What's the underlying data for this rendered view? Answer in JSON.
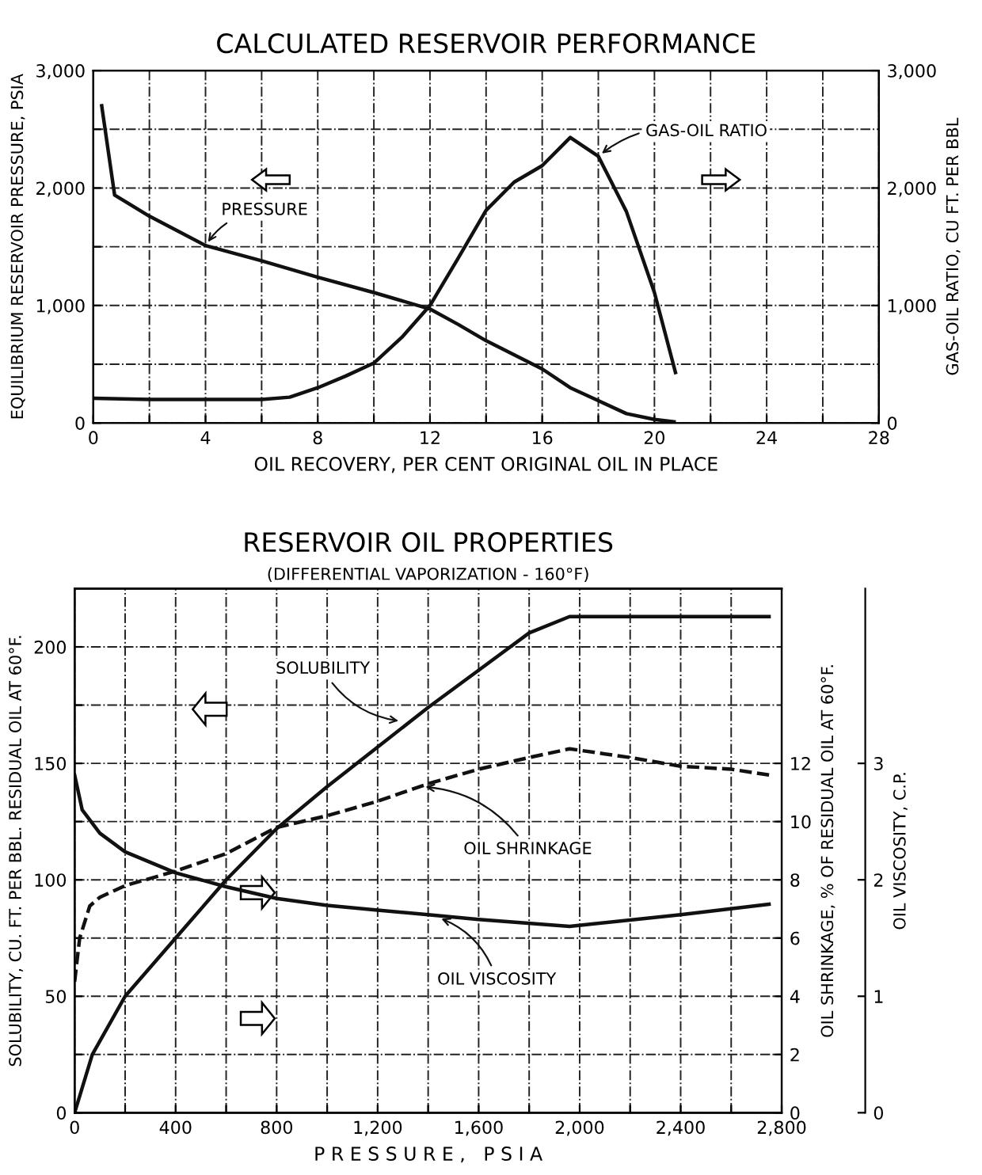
{
  "chart_data": [
    {
      "type": "line",
      "title": "CALCULATED RESERVOIR PERFORMANCE",
      "xlabel": "OIL RECOVERY, PER CENT ORIGINAL OIL IN PLACE",
      "ylabel": "EQUILIBRIUM RESERVOIR PRESSURE, PSIA",
      "y2label": "GAS-OIL RATIO, CU FT. PER BBL",
      "xlim": [
        0,
        28
      ],
      "xticks": [
        0,
        {
          "value": 2,
          "label": null
        },
        4,
        {
          "value": 6,
          "label": null
        },
        8,
        {
          "value": 10,
          "label": null
        },
        12,
        {
          "value": 14,
          "label": null
        },
        16,
        {
          "value": 18,
          "label": null
        },
        20,
        {
          "value": 22,
          "label": null
        },
        24,
        {
          "value": 26,
          "label": null
        },
        28
      ],
      "ylim": [
        0,
        3000
      ],
      "yticks": [
        {
          "value": 0,
          "label": "0"
        },
        {
          "value": 500,
          "label": null
        },
        {
          "value": 1000,
          "label": "1,000"
        },
        {
          "value": 1500,
          "label": null
        },
        {
          "value": 2000,
          "label": "2,000"
        },
        {
          "value": 2500,
          "label": null
        },
        {
          "value": 3000,
          "label": "3,000"
        }
      ],
      "y2lim": [
        0,
        3000
      ],
      "y2ticks": [
        {
          "value": 0,
          "label": "0"
        },
        {
          "value": 1000,
          "label": "1,000"
        },
        {
          "value": 2000,
          "label": "2,000"
        },
        {
          "value": 3000,
          "label": "3,000"
        }
      ],
      "grid": true,
      "line_style": "solid",
      "marker": "none",
      "series": [
        {
          "color": "#111111",
          "x": [
            0.3,
            0.76,
            2,
            4,
            6,
            8,
            10,
            12,
            13,
            14,
            16,
            17,
            18,
            19,
            20,
            20.7
          ],
          "values": [
            2700,
            1940,
            1760,
            1510,
            1380,
            1240,
            1110,
            970,
            840,
            700,
            460,
            300,
            190,
            80,
            30,
            10
          ]
        },
        {
          "color": "#111111",
          "axis": "y2",
          "x": [
            0,
            2,
            4,
            6,
            7,
            8,
            9,
            10,
            11,
            12,
            13,
            14,
            15,
            16,
            17,
            18,
            19,
            20,
            20.75
          ],
          "values": [
            210,
            200,
            200,
            200,
            220,
            300,
            400,
            510,
            730,
            1000,
            1400,
            1810,
            2050,
            2190,
            2430,
            2270,
            1800,
            1110,
            430
          ]
        }
      ],
      "annotations": [
        {
          "text": "PRESSURE",
          "x": 4,
          "y": 1510
        },
        {
          "text": "GAS-OIL RATIO",
          "x": 18,
          "y": 2270
        }
      ]
    },
    {
      "type": "line",
      "title": "RESERVOIR OIL PROPERTIES",
      "subtitle": "(DIFFERENTIAL VAPORIZATION - 160°F)",
      "xlabel": "P R E S S U R E ,   P S I A",
      "ylabel": "SOLUBILITY, CU. FT. PER BBL. RESIDUAL OIL AT 60°F.",
      "y2label": "OIL SHRINKAGE, % OF RESIDUAL OIL AT 60°F.",
      "y3label": "OIL VISCOSITY, C.P.",
      "xlim": [
        0,
        2800
      ],
      "xticks": [
        0,
        {
          "value": 200,
          "label": null
        },
        400,
        {
          "value": 600,
          "label": null
        },
        {
          "value": 800,
          "label": "800"
        },
        {
          "value": 1000,
          "label": null
        },
        {
          "value": 1200,
          "label": "1,200"
        },
        {
          "value": 1400,
          "label": null
        },
        {
          "value": 1600,
          "label": "1,600"
        },
        {
          "value": 1800,
          "label": null
        },
        {
          "value": 2000,
          "label": "2,000"
        },
        {
          "value": 2200,
          "label": null
        },
        {
          "value": 2400,
          "label": "2,400"
        },
        {
          "value": 2600,
          "label": null
        },
        {
          "value": 2800,
          "label": "2,800"
        }
      ],
      "ylim": [
        0,
        225
      ],
      "yticks": [
        0,
        {
          "value": 25,
          "label": null
        },
        50,
        {
          "value": 75,
          "label": null
        },
        100,
        {
          "value": 125,
          "label": null
        },
        150,
        {
          "value": 175,
          "label": null
        },
        200
      ],
      "y2lim": [
        0,
        18
      ],
      "y2ticks": [
        0,
        2,
        4,
        6,
        8,
        10,
        12
      ],
      "y3lim": [
        0,
        4.5
      ],
      "y3ticks": [
        0,
        1,
        2,
        3
      ],
      "grid": true,
      "marker": "none",
      "series": [
        {
          "color": "#111111",
          "line_style": "solid",
          "x": [
            0,
            70,
            200,
            400,
            600,
            800,
            1000,
            1200,
            1400,
            1600,
            1800,
            1960,
            2750
          ],
          "values": [
            0,
            25,
            50,
            75,
            100,
            122,
            140,
            157,
            174,
            190,
            206,
            213,
            213
          ]
        },
        {
          "color": "#111111",
          "line_style": "dashed",
          "axis": "y2",
          "x": [
            0,
            20,
            60,
            100,
            200,
            400,
            600,
            800,
            1000,
            1200,
            1400,
            1600,
            1800,
            1960,
            2200,
            2400,
            2600,
            2750
          ],
          "values": [
            4.5,
            6,
            7.1,
            7.4,
            7.8,
            8.3,
            8.9,
            9.8,
            10.2,
            10.7,
            11.3,
            11.8,
            12.2,
            12.5,
            12.2,
            11.9,
            11.8,
            11.6
          ]
        },
        {
          "color": "#111111",
          "line_style": "solid",
          "axis": "y3",
          "x": [
            0,
            30,
            100,
            200,
            400,
            600,
            800,
            1000,
            1200,
            1400,
            1600,
            1960,
            2400,
            2750
          ],
          "values": [
            2.9,
            2.6,
            2.4,
            2.24,
            2.06,
            1.94,
            1.84,
            1.78,
            1.74,
            1.7,
            1.66,
            1.6,
            1.7,
            1.79
          ]
        }
      ],
      "annotations": [
        {
          "text": "SOLUBILITY",
          "x": 1300,
          "y": 168
        },
        {
          "text": "OIL SHRINKAGE",
          "x": 1372,
          "y": 140
        },
        {
          "text": "OIL VISCOSITY",
          "x": 1436,
          "y": 84
        }
      ]
    }
  ]
}
